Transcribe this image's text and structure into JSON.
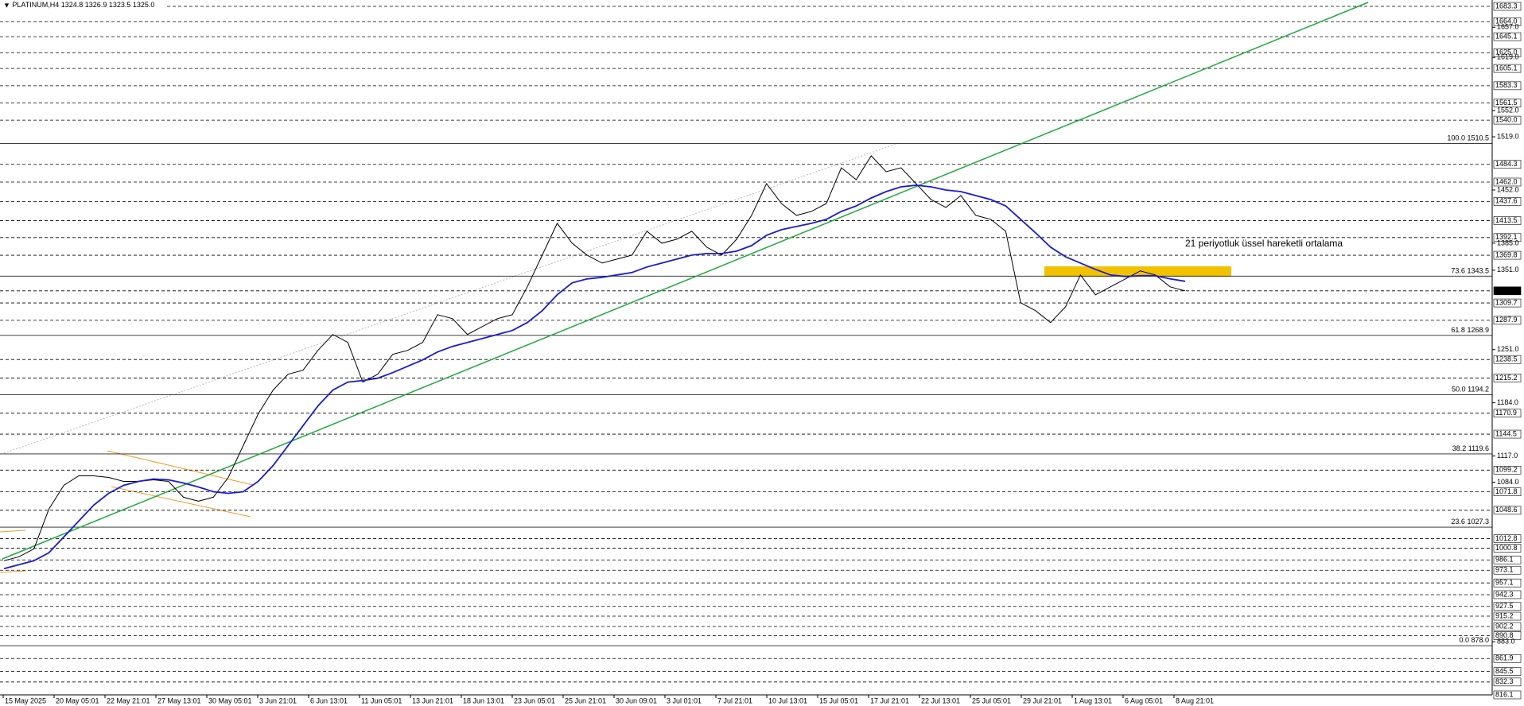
{
  "chart_data": {
    "type": "line",
    "header": "PLATINUM,H4  1324.8 1326.9 1323.5 1325.0",
    "ylim": [
      816.1,
      1683.3
    ],
    "yticks": [
      {
        "value": 1657,
        "label": "1657.0"
      },
      {
        "value": 1619,
        "label": "1619.0"
      },
      {
        "value": 1552,
        "label": "1552.0"
      },
      {
        "value": 1519,
        "label": "1519.0"
      },
      {
        "value": 1452,
        "label": "1452.0"
      },
      {
        "value": 1385,
        "label": "1385.0"
      },
      {
        "value": 1351,
        "label": "1351.0"
      },
      {
        "value": 1251,
        "label": "1251.0"
      },
      {
        "value": 1184,
        "label": "1184.0"
      },
      {
        "value": 1117,
        "label": "1117.0"
      },
      {
        "value": 1084,
        "label": "1084.0"
      },
      {
        "value": 883,
        "label": "883.0"
      }
    ],
    "levels": [
      1683.3,
      {
        "value": 1664,
        "label": "1664.0"
      },
      1645.1,
      {
        "value": 1625,
        "label": "1625.0"
      },
      1605.1,
      1583.3,
      1561.5,
      {
        "value": 1540,
        "label": "1540.0"
      },
      1484.3,
      {
        "value": 1462,
        "label": "1462.0"
      },
      1437.6,
      1413.5,
      1392.1,
      1369.8,
      {
        "value": 1325,
        "label": "1325.0"
      },
      1309.7,
      1287.9,
      1238.5,
      1215.2,
      1170.9,
      1144.5,
      1099.2,
      1071.8,
      1048.6,
      1012.8,
      1000.8,
      986.1,
      973.1,
      957.1,
      942.3,
      927.5,
      915.2,
      902.2,
      890.8,
      861.9,
      845.5,
      832.3,
      816.1
    ],
    "fibonacci": [
      {
        "ratio": "100.0",
        "value": 1510.5,
        "label": "1510.5"
      },
      {
        "ratio": "73.6",
        "value": 1343.5,
        "label": "1343.5"
      },
      {
        "ratio": "61.8",
        "value": 1268.9,
        "label": "1268.9"
      },
      {
        "ratio": "50.0",
        "value": 1194.2,
        "label": "1194.2"
      },
      {
        "ratio": "38.2",
        "value": 1119.6,
        "label": "1119.6"
      },
      {
        "ratio": "23.6",
        "value": 1027.3,
        "label": "1027.3"
      },
      {
        "ratio": "0.0",
        "value": 878,
        "label": "878.0"
      }
    ],
    "x_labels": [
      "15 May 2025",
      "20 May 05:01",
      "22 May 21:01",
      "27 May 13:01",
      "30 May 05:01",
      "3 Jun 21:01",
      "6 Jun 13:01",
      "11 Jun 05:01",
      "13 Jun 21:01",
      "18 Jun 13:01",
      "23 Jun 05:01",
      "25 Jun 21:01",
      "30 Jun 09:01",
      "3 Jul 01:01",
      "7 Jul 21:01",
      "10 Jul 13:01",
      "15 Jul 05:01",
      "17 Jul 21:01",
      "22 Jul 13:01",
      "25 Jul 05:01",
      "29 Jul 21:01",
      "1 Aug 13:01",
      "6 Aug 05:01",
      "8 Aug 21:01"
    ],
    "series": [
      {
        "color": "#000000",
        "values": [
          985,
          990,
          1000,
          1050,
          1080,
          1092,
          1092,
          1090,
          1085,
          1085,
          1087,
          1085,
          1065,
          1060,
          1065,
          1090,
          1130,
          1170,
          1200,
          1220,
          1225,
          1250,
          1270,
          1260,
          1210,
          1220,
          1245,
          1250,
          1260,
          1295,
          1290,
          1270,
          1280,
          1290,
          1295,
          1330,
          1370,
          1410,
          1385,
          1370,
          1360,
          1365,
          1370,
          1400,
          1385,
          1390,
          1400,
          1380,
          1370,
          1390,
          1420,
          1460,
          1435,
          1420,
          1425,
          1435,
          1480,
          1465,
          1495,
          1475,
          1480,
          1460,
          1440,
          1430,
          1445,
          1420,
          1415,
          1400,
          1310,
          1300,
          1285,
          1305,
          1345,
          1320,
          1330,
          1340,
          1350,
          1345,
          1330,
          1325
        ]
      },
      {
        "name": "21 periyotluk üssel hareketli ortalama",
        "color": "#1a1ad6",
        "values": [
          975,
          980,
          985,
          995,
          1015,
          1035,
          1055,
          1070,
          1080,
          1085,
          1088,
          1087,
          1083,
          1078,
          1072,
          1070,
          1072,
          1085,
          1105,
          1130,
          1155,
          1180,
          1200,
          1210,
          1212,
          1215,
          1222,
          1230,
          1238,
          1248,
          1255,
          1260,
          1265,
          1270,
          1275,
          1285,
          1300,
          1320,
          1335,
          1340,
          1342,
          1345,
          1348,
          1355,
          1360,
          1365,
          1370,
          1372,
          1372,
          1375,
          1382,
          1395,
          1402,
          1406,
          1410,
          1415,
          1425,
          1432,
          1442,
          1450,
          1456,
          1458,
          1456,
          1452,
          1450,
          1445,
          1440,
          1432,
          1415,
          1398,
          1380,
          1368,
          1360,
          1352,
          1345,
          1343,
          1344,
          1344,
          1340,
          1337
        ]
      }
    ]
  }
}
